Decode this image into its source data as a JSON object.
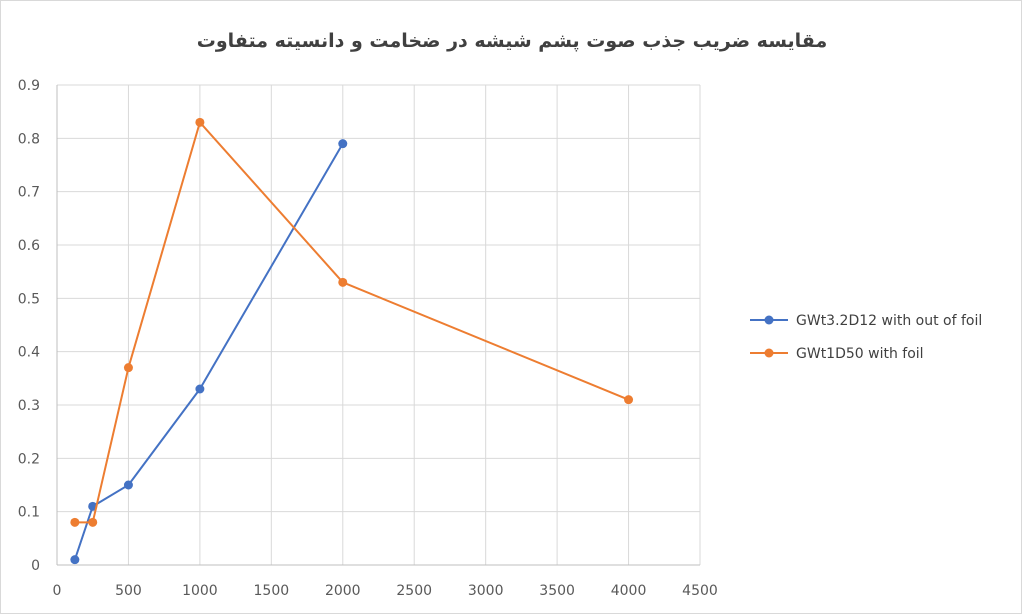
{
  "chart_data": {
    "type": "line",
    "title": "مقایسه ضریب جذب صوت پشم شیشه در ضخامت و دانسیته متفاوت",
    "xlabel": "",
    "ylabel": "",
    "xlim": [
      0,
      4500
    ],
    "ylim": [
      0,
      0.9
    ],
    "x_ticks": [
      "0",
      "500",
      "1000",
      "1500",
      "2000",
      "2500",
      "3000",
      "3500",
      "4000",
      "4500"
    ],
    "y_ticks": [
      "0",
      "0.1",
      "0.2",
      "0.3",
      "0.4",
      "0.5",
      "0.6",
      "0.7",
      "0.8",
      "0.9"
    ],
    "grid": true,
    "legend_position": "right",
    "series": [
      {
        "name": "GWt3.2D12 with out of foil",
        "color": "#4472c4",
        "x": [
          125,
          250,
          500,
          1000,
          2000
        ],
        "y": [
          0.01,
          0.11,
          0.15,
          0.33,
          0.79
        ]
      },
      {
        "name": "GWt1D50 with foil",
        "color": "#ed7d31",
        "x": [
          125,
          250,
          500,
          1000,
          2000,
          4000
        ],
        "y": [
          0.08,
          0.08,
          0.37,
          0.83,
          0.53,
          0.31
        ]
      }
    ]
  }
}
